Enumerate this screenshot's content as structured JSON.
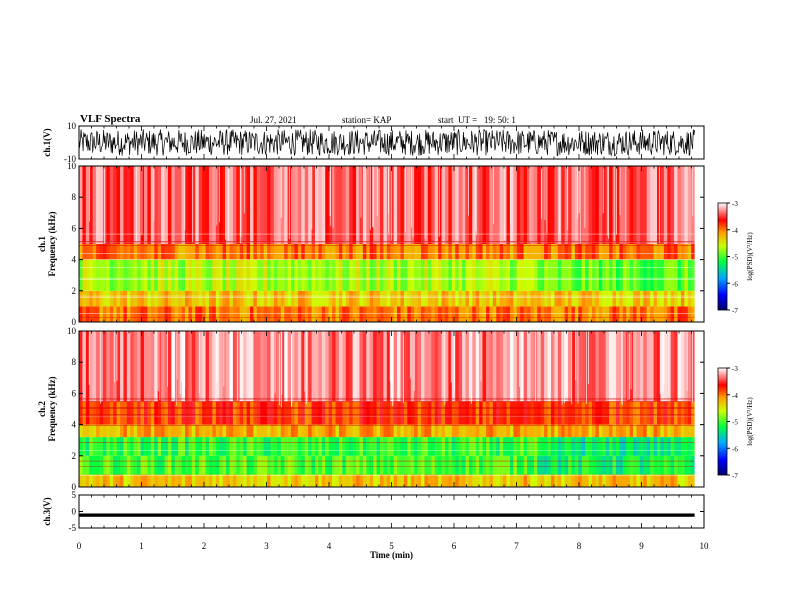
{
  "header": {
    "title": "VLF Spectra",
    "date": "Jul. 27, 2021",
    "station": "station= KAP",
    "start": "start  UT =   19: 50: 1"
  },
  "chart_data": [
    {
      "type": "line",
      "panel": "ch1-waveform",
      "ylabel": "ch.1(V)",
      "ylim": [
        -10,
        10
      ],
      "yticks": [
        10,
        -10
      ],
      "xlim": [
        0,
        10
      ],
      "plotted_range_min": [
        0,
        9.85
      ],
      "description_level": "dense black waveform spanning roughly -8 to +8 V"
    },
    {
      "type": "heatmap",
      "panel": "ch1-spectrogram",
      "ylabel": "ch.1\nFrequency (kHz)",
      "ylim": [
        0,
        10
      ],
      "yticks": [
        0,
        2,
        4,
        6,
        8,
        10
      ],
      "xlim": [
        0,
        10
      ],
      "plotted_range_min": [
        0,
        9.85
      ],
      "colorbar": {
        "label": "log(PSD)(V²/Hz)",
        "range": [
          -7,
          -3
        ],
        "ticks": [
          -3,
          -4,
          -5,
          -6,
          -7
        ]
      },
      "bands_khz": [
        {
          "from": 0,
          "to": 1.0,
          "level": -4.0
        },
        {
          "from": 1.0,
          "to": 2.0,
          "level": -4.3
        },
        {
          "from": 2.0,
          "to": 4.0,
          "level": -4.7
        },
        {
          "from": 4.0,
          "to": 5.0,
          "level": -4.0
        },
        {
          "from": 5.0,
          "to": 10.0,
          "level": -3.4
        }
      ]
    },
    {
      "type": "heatmap",
      "panel": "ch2-spectrogram",
      "ylabel": "ch.2\nFrequency (kHz)",
      "ylim": [
        0,
        10
      ],
      "yticks": [
        0,
        2,
        4,
        6,
        8,
        10
      ],
      "xlim": [
        0,
        10
      ],
      "plotted_range_min": [
        0,
        9.85
      ],
      "colorbar": {
        "label": "log(PSD)(V²/Hz)",
        "range": [
          -7,
          -3
        ],
        "ticks": [
          -3,
          -4,
          -5,
          -6,
          -7
        ]
      },
      "bands_khz": [
        {
          "from": 0,
          "to": 0.8,
          "level": -4.3
        },
        {
          "from": 0.8,
          "to": 2.0,
          "level": -5.0
        },
        {
          "from": 2.0,
          "to": 3.2,
          "level": -5.1
        },
        {
          "from": 3.2,
          "to": 4.0,
          "level": -4.2
        },
        {
          "from": 4.0,
          "to": 5.5,
          "level": -3.8
        },
        {
          "from": 5.5,
          "to": 10.0,
          "level": -3.3
        }
      ]
    },
    {
      "type": "line",
      "panel": "ch3-waveform",
      "ylabel": "ch.3(V)",
      "ylim": [
        -5,
        5
      ],
      "yticks": [
        5,
        0,
        -5
      ],
      "xlim": [
        0,
        10
      ],
      "plotted_range_min": [
        0,
        9.85
      ],
      "description_level": "thick black trace near -1 V"
    }
  ],
  "xaxis": {
    "label": "Time (min)",
    "ticks": [
      "0",
      "1",
      "2",
      "3",
      "4",
      "5",
      "6",
      "7",
      "8",
      "9",
      "10"
    ]
  },
  "colormap": [
    "#00008b",
    "#0000ff",
    "#00c8ff",
    "#00ff00",
    "#ffff00",
    "#ff8000",
    "#ff0000",
    "#ffffff"
  ]
}
